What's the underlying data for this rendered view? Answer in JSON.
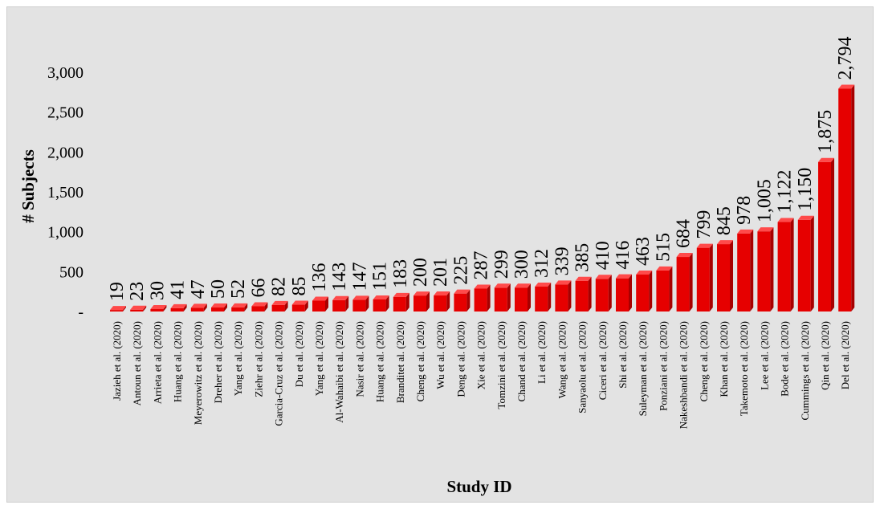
{
  "chart_data": {
    "type": "bar",
    "style": "3d-column",
    "bar_color": "#e60000",
    "bar_side_color": "#a80000",
    "bar_top_color": "#ff4a4a",
    "background_color": "#e3e3e3",
    "xlabel": "Study ID",
    "ylabel": "# Subjects",
    "ylim": [
      0,
      3000
    ],
    "yticks": [
      0,
      500,
      1000,
      1500,
      2000,
      2500,
      3000
    ],
    "ytick_labels": [
      "-",
      "500",
      "1,000",
      "1,500",
      "2,000",
      "2,500",
      "3,000"
    ],
    "grid": false,
    "legend": "none",
    "categories": [
      "Jazieh et al. (2020)",
      "Antoun et al. (2020)",
      "Arrieta et al. (2020)",
      "Huang et al. (2020)",
      "Meyerowitz et al. (2020)",
      "Dreher et al. (2020)",
      "Yang et al. (2020)",
      "Ziehr et al. (2020)",
      "Garcia-Cruz et al. (2020)",
      "Du et al. (2020)",
      "Yang et al. (2020)",
      "Al-Wahaibi et al. (2020)",
      "Nasir et al. (2020)",
      "Huang et al. (2020)",
      "Branditet al. (2020)",
      "Cheng et al. (2020)",
      "Wu et al. (2020)",
      "Deng et al. (2020)",
      "Xie et al. (2020)",
      "Tomzini et al. (2020)",
      "Chand et al. (2020)",
      "Li et al. (2020)",
      "Wang et al. (2020)",
      "Sanyaolu et al. (2020)",
      "Ciceri et al. (2020)",
      "Shi et al. (2020)",
      "Suleyman et al. (2020)",
      "Ponziani et al. (2020)",
      "Nakeshbandi et al. (2020)",
      "Cheng et al. (2020)",
      "Khan et al. (2020)",
      "Takemoto et al. (2020)",
      "Lee et al. (2020)",
      "Bode et al. (2020)",
      "Cummings et al. (2020)",
      "Qin et al. (2020)",
      "Del et al. (2020)"
    ],
    "values": [
      19,
      23,
      30,
      41,
      47,
      50,
      52,
      66,
      82,
      85,
      136,
      143,
      147,
      151,
      183,
      200,
      201,
      225,
      287,
      299,
      300,
      312,
      339,
      385,
      410,
      416,
      463,
      515,
      684,
      799,
      845,
      978,
      1005,
      1122,
      1150,
      1875,
      2794
    ],
    "value_labels": [
      "19",
      "23",
      "30",
      "41",
      "47",
      "50",
      "52",
      "66",
      "82",
      "85",
      "136",
      "143",
      "147",
      "151",
      "183",
      "200",
      "201",
      "225",
      "287",
      "299",
      "300",
      "312",
      "339",
      "385",
      "410",
      "416",
      "463",
      "515",
      "684",
      "799",
      "845",
      "978",
      "1,005",
      "1,122",
      "1,150",
      "1,875",
      "2,794"
    ]
  }
}
